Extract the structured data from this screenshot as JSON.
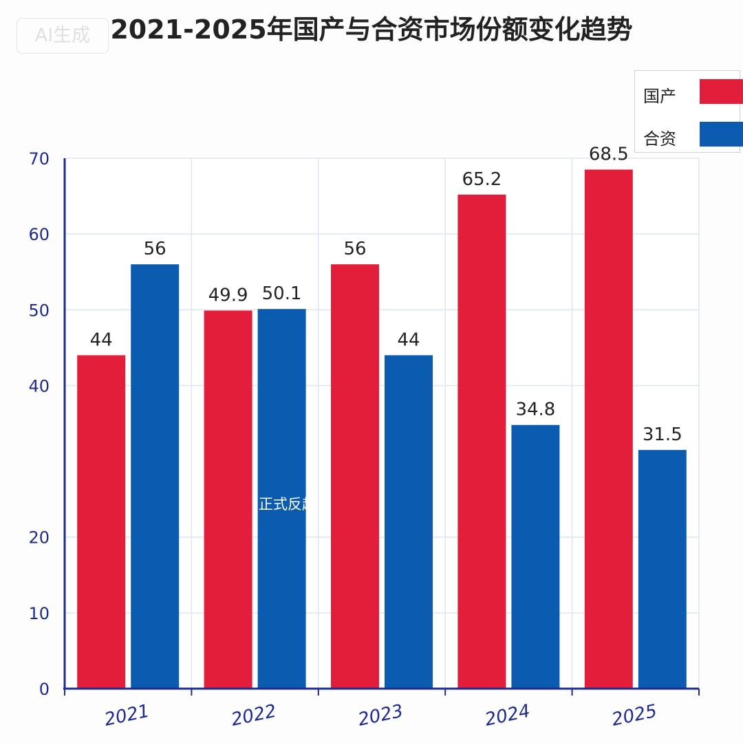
{
  "watermark": "AI生成",
  "overlay_text": "正式反超",
  "colors": {
    "domestic": "#e31e3a",
    "joint": "#0b5cb0",
    "axis": "#1d2a8f",
    "grid": "#dde6f3"
  },
  "chart_data": {
    "type": "bar",
    "title": "2021-2025年国产与合资市场份额变化趋势",
    "xlabel": "",
    "ylabel": "",
    "categories": [
      "2021",
      "2022",
      "2023",
      "2024",
      "2025"
    ],
    "series": [
      {
        "name": "国产",
        "values": [
          44,
          49.9,
          56,
          65.2,
          68.5
        ],
        "labels": [
          "44",
          "49.9",
          "56",
          "65.2",
          "68.5"
        ]
      },
      {
        "name": "合资",
        "values": [
          56,
          50.1,
          44,
          34.8,
          31.5
        ],
        "labels": [
          "56",
          "50.1",
          "44",
          "34.8",
          "31.5"
        ]
      }
    ],
    "ylim": [
      0,
      70
    ],
    "yticks": [
      "0",
      "10",
      "20",
      "40",
      "50",
      "60",
      "70"
    ],
    "legend_position": "top-right",
    "grid": true
  }
}
